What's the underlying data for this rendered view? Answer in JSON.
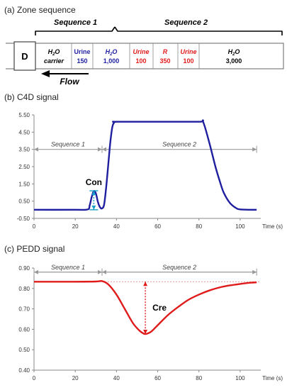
{
  "zone_panel": {
    "title": "(a) Zone sequence",
    "sequence1_label": "Sequence 1",
    "sequence2_label": "Sequence 2",
    "detector_label": "D",
    "flow_label": "Flow",
    "zones": [
      {
        "name_main": "H",
        "name_sub": "2",
        "name_rest": "O",
        "value": "carrier",
        "color": "#000000",
        "italic": true
      },
      {
        "name": "Urine",
        "value": "150",
        "color": "#1f1fa0",
        "italic": false
      },
      {
        "name_main": "H",
        "name_sub": "2",
        "name_rest": "O",
        "value": "1,000",
        "color": "#1f1fa0",
        "italic": true
      },
      {
        "name": "Urine",
        "value": "100",
        "color": "#e01b1b",
        "italic": false
      },
      {
        "name": "R",
        "value": "350",
        "color": "#e01b1b",
        "italic": false
      },
      {
        "name": "Urine",
        "value": "100",
        "color": "#e01b1b",
        "italic": false
      },
      {
        "name_main": "H",
        "name_sub": "2",
        "name_rest": "O",
        "value": "3,000",
        "color": "#000000",
        "italic": true
      }
    ]
  },
  "chart_data": [
    {
      "type": "line",
      "title": "(b) C4D signal",
      "xlabel": "Time (s)",
      "ylabel": "",
      "xlim": [
        0,
        110
      ],
      "ylim": [
        -0.5,
        5.5
      ],
      "x_ticks": [
        "0",
        "20",
        "40",
        "60",
        "80",
        "100"
      ],
      "x_tick_values": [
        0,
        20,
        40,
        60,
        80,
        100
      ],
      "y_ticks": [
        "-0.50",
        "0.50",
        "1.50",
        "2.50",
        "3.50",
        "4.50",
        "5.50"
      ],
      "y_tick_values": [
        -0.5,
        0.5,
        1.5,
        2.5,
        3.5,
        4.5,
        5.5
      ],
      "color": "#1f1fa0",
      "grid": false,
      "sequence_bands": [
        {
          "label": "Sequence 1",
          "start": 0,
          "end": 33,
          "y": 3.5
        },
        {
          "label": "Sequence 2",
          "start": 33,
          "end": 108,
          "y": 3.5
        }
      ],
      "annotation": {
        "label": "Con",
        "x": 29,
        "y_from": 0.0,
        "y_to": 1.1
      },
      "series": [
        {
          "x": [
            0,
            20,
            26,
            27,
            28,
            29,
            30,
            31,
            32,
            33,
            34,
            35,
            36,
            37,
            38,
            39,
            40,
            60,
            80,
            82,
            85,
            88,
            90,
            92,
            95,
            98,
            100,
            105,
            108
          ],
          "y": [
            0.0,
            0.0,
            0.02,
            0.25,
            0.75,
            1.08,
            0.95,
            0.45,
            0.15,
            0.08,
            0.3,
            1.3,
            2.6,
            3.9,
            4.8,
            5.08,
            5.1,
            5.1,
            5.1,
            5.1,
            3.9,
            2.5,
            1.7,
            1.0,
            0.4,
            0.1,
            0.02,
            0.0,
            0.0
          ]
        }
      ]
    },
    {
      "type": "line",
      "title": "(c) PEDD signal",
      "xlabel": "Time (s)",
      "ylabel": "",
      "xlim": [
        0,
        110
      ],
      "ylim": [
        0.4,
        0.9
      ],
      "x_ticks": [
        "0",
        "20",
        "40",
        "60",
        "80",
        "100"
      ],
      "x_tick_values": [
        0,
        20,
        40,
        60,
        80,
        100
      ],
      "y_ticks": [
        "0.40",
        "0.50",
        "0.60",
        "0.70",
        "0.80",
        "0.90"
      ],
      "y_tick_values": [
        0.4,
        0.5,
        0.6,
        0.7,
        0.8,
        0.9
      ],
      "color": "#e01b1b",
      "grid": false,
      "baseline": 0.833,
      "sequence_bands": [
        {
          "label": "Sequence 1",
          "start": 0,
          "end": 33,
          "y": 0.88
        },
        {
          "label": "Sequence 2",
          "start": 33,
          "end": 108,
          "y": 0.88
        }
      ],
      "annotation": {
        "label": "Cre",
        "x": 54,
        "y_from": 0.833,
        "y_to": 0.577
      },
      "series": [
        {
          "x": [
            0,
            20,
            30,
            33,
            36,
            40,
            44,
            48,
            51,
            53,
            54,
            55,
            57,
            60,
            65,
            70,
            75,
            80,
            85,
            90,
            95,
            100,
            105,
            108
          ],
          "y": [
            0.833,
            0.833,
            0.834,
            0.836,
            0.82,
            0.77,
            0.7,
            0.63,
            0.595,
            0.58,
            0.577,
            0.579,
            0.59,
            0.62,
            0.67,
            0.71,
            0.745,
            0.77,
            0.79,
            0.805,
            0.815,
            0.822,
            0.828,
            0.83
          ]
        }
      ]
    }
  ]
}
